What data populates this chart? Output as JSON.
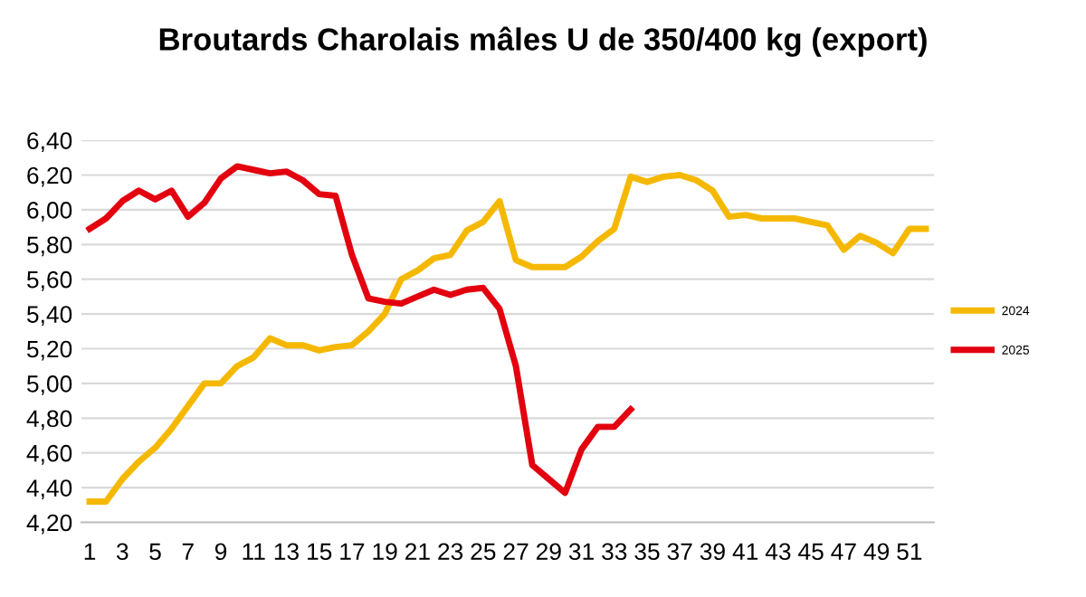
{
  "chart_data": {
    "type": "line",
    "title": "Broutards Charolais mâles U de 350/400 kg (export)",
    "categories": [
      "1",
      null,
      "3",
      null,
      "5",
      null,
      "7",
      null,
      "9",
      null,
      "11",
      null,
      "13",
      null,
      "15",
      null,
      "17",
      null,
      "19",
      null,
      "21",
      null,
      "23",
      null,
      "25",
      null,
      "27",
      null,
      "29",
      null,
      "31",
      null,
      "33",
      null,
      "35",
      null,
      "37",
      null,
      "39",
      null,
      "41",
      null,
      "43",
      null,
      "45",
      null,
      "47",
      null,
      "49",
      null,
      "51",
      null
    ],
    "series": [
      {
        "name": "2024",
        "color": "#f5b800",
        "values": [
          4.32,
          4.32,
          4.45,
          4.55,
          4.63,
          4.74,
          4.87,
          5.0,
          5.0,
          5.1,
          5.15,
          5.26,
          5.22,
          5.22,
          5.19,
          5.21,
          5.22,
          5.3,
          5.4,
          5.6,
          5.65,
          5.72,
          5.74,
          5.88,
          5.93,
          6.05,
          5.71,
          5.67,
          5.67,
          5.67,
          5.73,
          5.82,
          5.89,
          6.19,
          6.16,
          6.19,
          6.2,
          6.17,
          6.11,
          5.96,
          5.97,
          5.95,
          5.95,
          5.95,
          5.93,
          5.91,
          5.77,
          5.85,
          5.81,
          5.75,
          5.89,
          5.89
        ]
      },
      {
        "name": "2025",
        "color": "#e3000f",
        "values": [
          5.89,
          5.95,
          6.05,
          6.11,
          6.06,
          6.11,
          5.96,
          6.04,
          6.18,
          6.25,
          6.23,
          6.21,
          6.22,
          6.17,
          6.09,
          6.08,
          5.74,
          5.49,
          5.47,
          5.46,
          5.5,
          5.54,
          5.51,
          5.54,
          5.55,
          5.43,
          5.1,
          4.53,
          4.45,
          4.37,
          4.62,
          4.75,
          4.75,
          4.85,
          null,
          null,
          null,
          null,
          null,
          null,
          null,
          null,
          null,
          null,
          null,
          null,
          null,
          null,
          null,
          null,
          null,
          null
        ]
      }
    ],
    "ylim": [
      4.2,
      6.4
    ],
    "yticks": [
      {
        "value": 4.2,
        "label": "4,20"
      },
      {
        "value": 4.4,
        "label": "4,40"
      },
      {
        "value": 4.6,
        "label": "4,60"
      },
      {
        "value": 4.8,
        "label": "4,80"
      },
      {
        "value": 5.0,
        "label": "5,00"
      },
      {
        "value": 5.2,
        "label": "5,20"
      },
      {
        "value": 5.4,
        "label": "5,40"
      },
      {
        "value": 5.6,
        "label": "5,60"
      },
      {
        "value": 5.8,
        "label": "5,80"
      },
      {
        "value": 6.0,
        "label": "6,00"
      },
      {
        "value": 6.2,
        "label": "6,20"
      },
      {
        "value": 6.4,
        "label": "6,40"
      }
    ],
    "grid": "y",
    "legend": "right",
    "marker": "none",
    "line_style": "solid"
  }
}
